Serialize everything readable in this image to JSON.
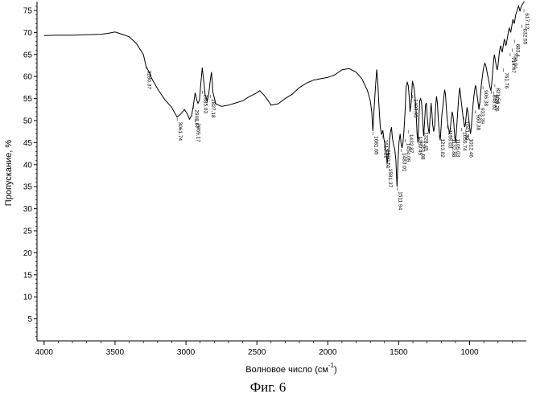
{
  "chart_data": {
    "type": "line",
    "xlabel": "Волновое число (см",
    "xlabel_sup": "-1",
    "xlabel_close": ")",
    "ylabel": "Пропускание, %",
    "xlim": [
      4050,
      600
    ],
    "ylim": [
      0,
      77
    ],
    "x_ticks": [
      4000,
      3500,
      3000,
      2500,
      2000,
      1500,
      1000
    ],
    "y_ticks": [
      5,
      10,
      15,
      20,
      25,
      30,
      35,
      40,
      45,
      50,
      55,
      60,
      65,
      70,
      75
    ],
    "grid": false,
    "series": [
      {
        "x": [
          4000,
          3900,
          3800,
          3700,
          3600,
          3550,
          3500,
          3450,
          3400,
          3350,
          3300,
          3283,
          3260,
          3240,
          3200,
          3150,
          3100,
          3080,
          3062,
          3040,
          3010,
          2990,
          2975,
          2960,
          2947,
          2935,
          2925,
          2915,
          2905,
          2895,
          2885,
          2875,
          2865,
          2850,
          2840,
          2829,
          2820,
          2810,
          2790,
          2750,
          2700,
          2650,
          2600,
          2550,
          2500,
          2480,
          2450,
          2420,
          2400,
          2350,
          2300,
          2250,
          2200,
          2150,
          2100,
          2050,
          2000,
          1950,
          1900,
          1850,
          1800,
          1760,
          1720,
          1700,
          1690,
          1682,
          1675,
          1665,
          1655,
          1648,
          1640,
          1630,
          1620,
          1612,
          1605,
          1597,
          1590,
          1581,
          1570,
          1560,
          1551,
          1544,
          1536,
          1528,
          1520,
          1512,
          1505,
          1498,
          1490,
          1483,
          1476,
          1470,
          1463,
          1455,
          1448,
          1440,
          1433,
          1426,
          1420,
          1412,
          1403,
          1396,
          1390,
          1384,
          1378,
          1371,
          1365,
          1358,
          1352,
          1345,
          1338,
          1331,
          1324,
          1318,
          1311,
          1305,
          1299,
          1292,
          1285,
          1279,
          1272,
          1266,
          1260,
          1253,
          1246,
          1240,
          1233,
          1227,
          1220,
          1213,
          1207,
          1201,
          1195,
          1189,
          1183,
          1176,
          1170,
          1164,
          1159,
          1153,
          1147,
          1141,
          1135,
          1129,
          1123,
          1117,
          1112,
          1106,
          1100,
          1094,
          1088,
          1082,
          1076,
          1070,
          1064,
          1058,
          1052,
          1047,
          1041,
          1035,
          1029,
          1023,
          1018,
          1012,
          1006,
          1000,
          994,
          988,
          982,
          976,
          970,
          964,
          958,
          952,
          946,
          940,
          934,
          928,
          922,
          916,
          910,
          904,
          898,
          892,
          886,
          880,
          874,
          868,
          862,
          856,
          850,
          845,
          840,
          835,
          830,
          825,
          820,
          815,
          810,
          805,
          800,
          795,
          790,
          785,
          780,
          775,
          770,
          765,
          760,
          755,
          750,
          745,
          740,
          735,
          730,
          725,
          720,
          715,
          710,
          705,
          700,
          695,
          690,
          685,
          680,
          675,
          670,
          665,
          660,
          655,
          650,
          645,
          640,
          635,
          630,
          625,
          620,
          615
        ],
        "y": [
          69.3,
          69.4,
          69.4,
          69.5,
          69.6,
          69.8,
          70.1,
          69.6,
          69.0,
          67.5,
          65.0,
          62.5,
          61.0,
          59.5,
          57.2,
          54.8,
          53.0,
          51.8,
          50.8,
          51.4,
          52.5,
          51.5,
          50.3,
          51.2,
          53.6,
          56.3,
          54.8,
          53.9,
          54.6,
          58.3,
          62.0,
          59.0,
          56.0,
          54.4,
          55.8,
          59.0,
          61.0,
          56.5,
          53.8,
          53.2,
          53.5,
          54.0,
          54.5,
          55.5,
          56.3,
          56.8,
          55.8,
          54.5,
          53.5,
          53.8,
          55.0,
          56.0,
          57.5,
          58.5,
          59.2,
          59.5,
          59.8,
          60.4,
          61.5,
          61.8,
          61.0,
          59.5,
          56.8,
          54.5,
          52.0,
          47.6,
          52.0,
          57.0,
          61.6,
          59.0,
          54.0,
          48.5,
          46.8,
          47.8,
          46.0,
          44.5,
          43.0,
          40.2,
          43.5,
          47.0,
          48.5,
          46.0,
          44.5,
          43.5,
          41.0,
          35.0,
          40.5,
          45.0,
          47.0,
          44.8,
          43.8,
          45.0,
          47.5,
          52.0,
          57.5,
          58.7,
          58.0,
          55.5,
          52.0,
          54.0,
          59.0,
          58.0,
          57.0,
          55.0,
          52.5,
          47.5,
          45.0,
          50.0,
          54.5,
          55.0,
          54.0,
          50.0,
          46.5,
          49.5,
          53.5,
          54.0,
          51.0,
          48.5,
          47.0,
          50.5,
          54.0,
          52.0,
          49.0,
          47.5,
          49.0,
          53.0,
          55.5,
          54.0,
          50.0,
          47.0,
          45.5,
          48.5,
          51.5,
          53.0,
          55.0,
          57.0,
          56.0,
          53.0,
          50.5,
          49.0,
          48.0,
          47.0,
          48.5,
          50.5,
          52.0,
          51.0,
          49.5,
          47.0,
          45.0,
          47.0,
          50.0,
          53.0,
          55.5,
          57.5,
          56.0,
          54.0,
          52.5,
          51.0,
          49.5,
          48.5,
          49.5,
          51.5,
          53.0,
          52.0,
          50.5,
          48.5,
          47.0,
          48.5,
          51.0,
          53.5,
          55.5,
          57.0,
          58.0,
          57.0,
          55.5,
          54.0,
          52.5,
          54.0,
          56.5,
          58.5,
          60.0,
          61.5,
          62.5,
          63.0,
          62.5,
          61.5,
          60.5,
          59.5,
          58.5,
          57.5,
          56.8,
          58.0,
          60.0,
          62.0,
          64.0,
          65.0,
          64.0,
          63.0,
          62.0,
          61.5,
          62.5,
          64.0,
          65.5,
          66.5,
          67.0,
          66.0,
          65.5,
          66.5,
          67.5,
          68.5,
          68.0,
          67.0,
          67.5,
          68.5,
          69.5,
          70.5,
          71.0,
          70.5,
          70.0,
          71.0,
          72.0,
          73.0,
          72.5,
          72.0,
          73.0,
          74.0,
          74.5,
          75.0,
          75.5,
          76.0,
          75.5,
          74.8,
          75.5,
          76.0,
          76.2,
          76.5,
          76.8,
          77.0
        ]
      }
    ],
    "peaks": [
      {
        "label": "3280.37",
        "x": 3280,
        "y": 62.5
      },
      {
        "label": "3061.74",
        "x": 3062,
        "y": 50.8
      },
      {
        "label": "2948.67",
        "x": 2947,
        "y": 53.6
      },
      {
        "label": "2869.17",
        "x": 2935,
        "y": 50.5
      },
      {
        "label": "2885.03",
        "x": 2885,
        "y": 57.0
      },
      {
        "label": "2827.18",
        "x": 2829,
        "y": 56.0
      },
      {
        "label": "1681.65",
        "x": 1682,
        "y": 47.6
      },
      {
        "label": "1612.22",
        "x": 1612,
        "y": 46.8
      },
      {
        "label": "1590.51",
        "x": 1595,
        "y": 44.5
      },
      {
        "label": "1581.37",
        "x": 1581,
        "y": 40.2
      },
      {
        "label": "1511.94",
        "x": 1512,
        "y": 35.0
      },
      {
        "label": "1483.01",
        "x": 1483,
        "y": 43.8
      },
      {
        "label": "1454.09",
        "x": 1454,
        "y": 46.0
      },
      {
        "label": "1432.87",
        "x": 1433,
        "y": 48.0
      },
      {
        "label": "1403.95",
        "x": 1403,
        "y": 56.0
      },
      {
        "label": "1369.45",
        "x": 1371,
        "y": 47.5
      },
      {
        "label": "1351.88",
        "x": 1352,
        "y": 46.5
      },
      {
        "label": "1328.45",
        "x": 1328,
        "y": 48.5
      },
      {
        "label": "1213.02",
        "x": 1213,
        "y": 47.0
      },
      {
        "label": "1159.03",
        "x": 1159,
        "y": 49.0
      },
      {
        "label": "1132.88",
        "x": 1133,
        "y": 47.0
      },
      {
        "label": "1105.03",
        "x": 1106,
        "y": 47.0
      },
      {
        "label": "1055.74",
        "x": 1056,
        "y": 48.5
      },
      {
        "label": "1041.30",
        "x": 1041,
        "y": 51.0
      },
      {
        "label": "1012.46",
        "x": 1012,
        "y": 47.0
      },
      {
        "label": "960.38",
        "x": 960,
        "y": 52.5
      },
      {
        "label": "933.39",
        "x": 933,
        "y": 54.0
      },
      {
        "label": "906.38",
        "x": 906,
        "y": 58.0
      },
      {
        "label": "848.62",
        "x": 848,
        "y": 57.0
      },
      {
        "label": "829.25",
        "x": 829,
        "y": 56.8
      },
      {
        "label": "821.54",
        "x": 822,
        "y": 58.5
      },
      {
        "label": "761.76",
        "x": 762,
        "y": 62.0
      },
      {
        "label": "714.47",
        "x": 714,
        "y": 65.5
      },
      {
        "label": "700.04",
        "x": 700,
        "y": 66.5
      },
      {
        "label": "683.4",
        "x": 683,
        "y": 68.5
      },
      {
        "label": "632.55",
        "x": 632,
        "y": 72.0
      },
      {
        "label": "617.12",
        "x": 617,
        "y": 75.5
      }
    ]
  },
  "caption": "Фиг. 6"
}
